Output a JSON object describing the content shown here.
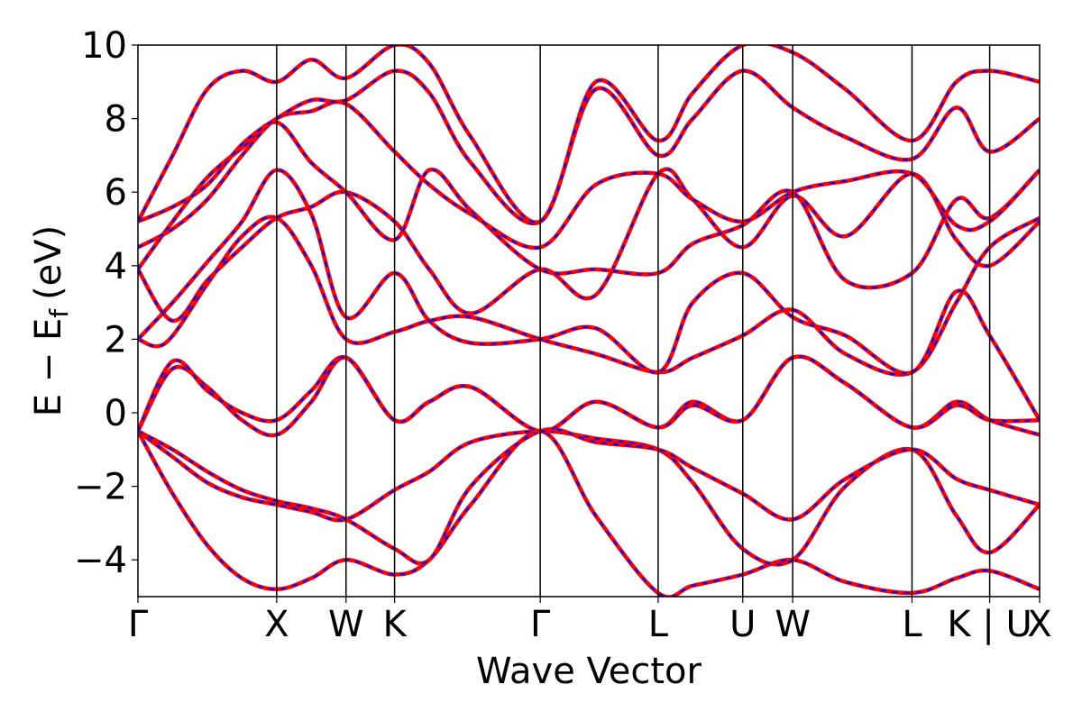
{
  "chart_data": {
    "type": "line",
    "title": "",
    "xlabel": "Wave Vector",
    "ylabel": "E − E",
    "ylabel_subscript": "f",
    "ylabel_unit": "(eV)",
    "ylim": [
      -5,
      10
    ],
    "yticks": [
      -4,
      -2,
      0,
      2,
      4,
      6,
      8,
      10
    ],
    "ytick_labels": [
      "−4",
      "−2",
      "0",
      "2",
      "4",
      "6",
      "8",
      "10"
    ],
    "xlim": [
      0,
      6.5
    ],
    "kpoints": [
      {
        "label": "Γ",
        "x": 0.0
      },
      {
        "label": "X",
        "x": 1.0
      },
      {
        "label": "W",
        "x": 1.5
      },
      {
        "label": "K",
        "x": 1.85
      },
      {
        "label": "Γ",
        "x": 2.9
      },
      {
        "label": "L",
        "x": 3.75
      },
      {
        "label": "U",
        "x": 4.36
      },
      {
        "label": "W",
        "x": 4.72
      },
      {
        "label": "L",
        "x": 5.58
      },
      {
        "label": "K | U",
        "x": 6.14
      },
      {
        "label": "X",
        "x": 6.5
      }
    ],
    "grid": false,
    "legend": "none",
    "colors": {
      "series_a": "#ff0000",
      "series_b": "#0000ff"
    },
    "series": [
      {
        "x": [
          0,
          0.25,
          0.5,
          0.75,
          1.0,
          1.25,
          1.5,
          1.85,
          2.1,
          2.4,
          2.9,
          3.3,
          3.75,
          4.0,
          4.36,
          4.72,
          5.1,
          5.58,
          5.9,
          6.14,
          6.5
        ],
        "values": [
          -0.5,
          -2.2,
          -3.6,
          -4.5,
          -4.8,
          -4.5,
          -4.0,
          -4.4,
          -4.0,
          -2.5,
          -0.5,
          -2.8,
          -4.9,
          -4.7,
          -4.4,
          -4.0,
          -4.6,
          -4.9,
          -4.5,
          -4.3,
          -4.8
        ]
      },
      {
        "x": [
          0,
          0.25,
          0.5,
          0.75,
          1.0,
          1.25,
          1.5,
          1.85,
          2.1,
          2.4,
          2.9,
          3.3,
          3.75,
          4.0,
          4.36,
          4.72,
          5.1,
          5.58,
          5.9,
          6.14,
          6.5
        ],
        "values": [
          -0.5,
          -1.2,
          -1.9,
          -2.3,
          -2.5,
          -2.7,
          -2.9,
          -2.1,
          -1.6,
          -0.8,
          -0.5,
          -0.7,
          -1.0,
          -1.9,
          -3.7,
          -4.0,
          -2.0,
          -1.0,
          -2.8,
          -3.8,
          -2.5
        ]
      },
      {
        "x": [
          0,
          0.25,
          0.5,
          0.75,
          1.0,
          1.25,
          1.5,
          1.85,
          2.1,
          2.4,
          2.9,
          3.3,
          3.75,
          4.0,
          4.36,
          4.72,
          5.1,
          5.58,
          5.9,
          6.14,
          6.5
        ],
        "values": [
          -0.5,
          -1.0,
          -1.6,
          -2.1,
          -2.4,
          -2.6,
          -2.9,
          -3.7,
          -4.0,
          -2.0,
          -0.5,
          -0.8,
          -1.0,
          -1.5,
          -2.2,
          -2.9,
          -1.8,
          -1.0,
          -1.8,
          -2.1,
          -2.5
        ]
      },
      {
        "x": [
          0,
          0.25,
          0.5,
          0.75,
          1.0,
          1.25,
          1.5,
          1.85,
          2.1,
          2.4,
          2.9,
          3.3,
          3.75,
          4.0,
          4.36,
          4.72,
          5.1,
          5.58,
          5.9,
          6.14,
          6.5
        ],
        "values": [
          -0.5,
          1.2,
          0.7,
          -0.2,
          -0.6,
          0.3,
          1.5,
          -0.2,
          0.3,
          0.7,
          -0.5,
          0.3,
          -0.4,
          0.3,
          -0.2,
          1.5,
          0.8,
          -0.4,
          0.3,
          -0.2,
          -0.6
        ]
      },
      {
        "x": [
          0,
          0.25,
          0.5,
          0.75,
          1.0,
          1.25,
          1.5,
          1.85,
          2.1,
          2.4,
          2.9,
          3.3,
          3.75,
          4.0,
          4.36,
          4.72,
          5.1,
          5.58,
          5.9,
          6.14,
          6.5
        ],
        "values": [
          -0.5,
          1.4,
          0.6,
          0.0,
          -0.2,
          0.6,
          1.5,
          -0.2,
          0.3,
          0.7,
          -0.5,
          0.3,
          -0.4,
          0.2,
          -0.2,
          1.5,
          0.8,
          -0.4,
          0.2,
          -0.2,
          -0.2
        ]
      },
      {
        "x": [
          0,
          0.2,
          0.5,
          0.75,
          1.0,
          1.25,
          1.5,
          1.85,
          2.1,
          2.4,
          2.9,
          3.3,
          3.75,
          4.0,
          4.36,
          4.72,
          5.1,
          5.58,
          5.9,
          6.14,
          6.5
        ],
        "values": [
          2.0,
          1.9,
          3.5,
          4.8,
          5.3,
          4.0,
          2.0,
          2.2,
          2.5,
          2.6,
          2.0,
          1.6,
          1.1,
          1.5,
          2.1,
          2.8,
          1.6,
          1.1,
          3.0,
          4.5,
          5.3
        ]
      },
      {
        "x": [
          0,
          0.25,
          0.5,
          0.75,
          1.0,
          1.25,
          1.5,
          1.85,
          2.1,
          2.4,
          2.9,
          3.3,
          3.75,
          4.0,
          4.36,
          4.72,
          5.1,
          5.58,
          5.9,
          6.14,
          6.5
        ],
        "values": [
          2.0,
          3.0,
          4.1,
          5.2,
          6.6,
          5.4,
          2.6,
          3.8,
          2.5,
          1.9,
          2.0,
          2.3,
          1.1,
          3.0,
          3.8,
          2.6,
          2.1,
          1.1,
          3.3,
          2.1,
          -0.2
        ]
      },
      {
        "x": [
          0,
          0.25,
          0.5,
          0.75,
          1.0,
          1.25,
          1.5,
          1.85,
          2.1,
          2.4,
          2.9,
          3.3,
          3.75,
          4.0,
          4.36,
          4.72,
          5.1,
          5.58,
          5.9,
          6.14,
          6.5
        ],
        "values": [
          3.9,
          2.5,
          3.6,
          4.5,
          5.3,
          5.6,
          6.0,
          5.2,
          3.9,
          2.7,
          3.9,
          3.2,
          6.5,
          5.8,
          4.5,
          5.9,
          4.8,
          6.5,
          4.7,
          4.0,
          5.2
        ]
      },
      {
        "x": [
          0,
          0.25,
          0.5,
          0.75,
          1.0,
          1.25,
          1.5,
          1.85,
          2.1,
          2.4,
          2.9,
          3.3,
          3.75,
          4.0,
          4.36,
          4.72,
          5.1,
          5.58,
          5.9,
          6.14,
          6.5
        ],
        "values": [
          3.9,
          5.2,
          6.4,
          7.2,
          7.9,
          6.8,
          6.0,
          4.7,
          6.6,
          5.5,
          3.9,
          3.9,
          3.8,
          4.6,
          5.1,
          6.0,
          3.6,
          3.8,
          5.8,
          5.3,
          6.6
        ]
      },
      {
        "x": [
          0,
          0.25,
          0.5,
          0.75,
          1.0,
          1.25,
          1.5,
          1.85,
          2.1,
          2.4,
          2.9,
          3.3,
          3.75,
          4.0,
          4.36,
          4.72,
          5.1,
          5.58,
          5.9,
          6.14,
          6.5
        ],
        "values": [
          4.5,
          5.0,
          5.8,
          7.0,
          8.0,
          8.2,
          8.4,
          7.1,
          6.2,
          5.4,
          4.5,
          6.2,
          6.5,
          5.8,
          5.2,
          6.0,
          6.3,
          6.5,
          5.1,
          5.2,
          6.6
        ]
      },
      {
        "x": [
          0,
          0.25,
          0.5,
          0.75,
          1.0,
          1.25,
          1.5,
          1.85,
          2.1,
          2.4,
          2.9,
          3.3,
          3.75,
          4.0,
          4.36,
          4.72,
          5.1,
          5.58,
          5.9,
          6.14,
          6.5
        ],
        "values": [
          5.2,
          5.6,
          6.2,
          7.3,
          8.0,
          8.5,
          8.5,
          9.3,
          8.7,
          6.8,
          5.2,
          8.8,
          7.0,
          8.0,
          9.3,
          8.3,
          7.5,
          6.9,
          8.3,
          7.1,
          8.0
        ]
      },
      {
        "x": [
          0,
          0.25,
          0.5,
          0.75,
          1.0,
          1.25,
          1.5,
          1.85,
          2.1,
          2.4,
          2.9,
          3.3,
          3.75,
          4.0,
          4.36,
          4.72,
          5.1,
          5.58,
          5.9,
          6.14,
          6.5
        ],
        "values": [
          5.2,
          7.0,
          8.8,
          9.3,
          9.0,
          9.6,
          9.1,
          10.0,
          9.5,
          7.5,
          5.2,
          9.0,
          7.4,
          8.7,
          10.0,
          9.8,
          8.8,
          7.4,
          9.0,
          9.3,
          9.0
        ]
      }
    ]
  }
}
